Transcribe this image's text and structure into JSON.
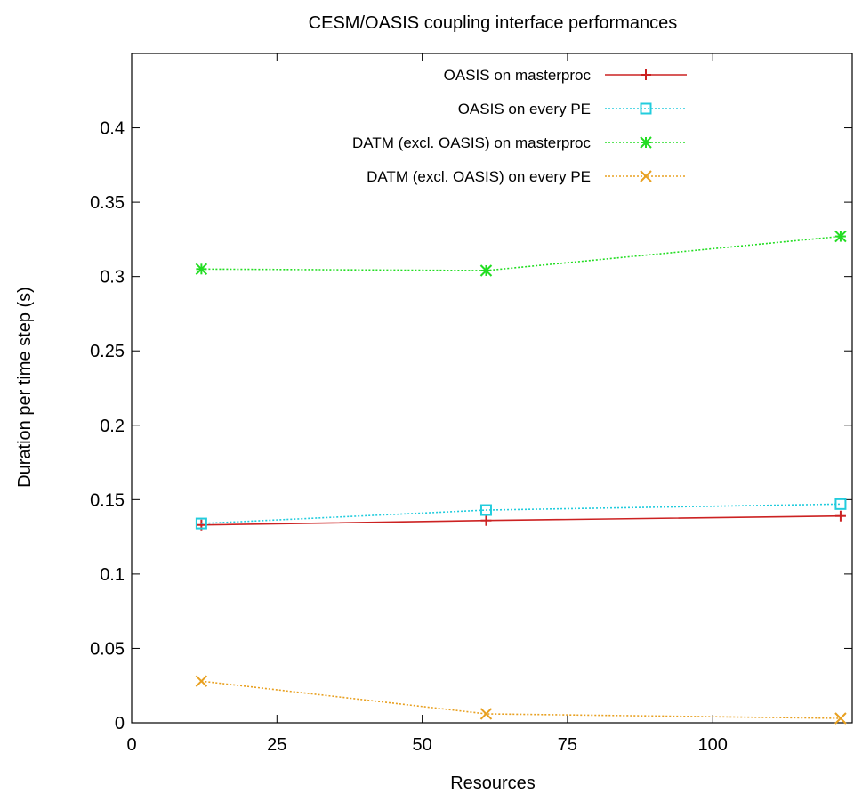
{
  "chart_data": {
    "type": "line",
    "title": "CESM/OASIS coupling interface performances",
    "xlabel": "Resources",
    "ylabel": "Duration per time step (s)",
    "xlim": [
      0,
      124
    ],
    "ylim": [
      0,
      0.45
    ],
    "xticks": [
      0,
      25,
      50,
      75,
      100
    ],
    "xtick_labels": [
      "0",
      "25",
      "50",
      "75",
      "100"
    ],
    "yticks": [
      0,
      0.05,
      0.1,
      0.15,
      0.2,
      0.25,
      0.3,
      0.35,
      0.4
    ],
    "ytick_labels": [
      "0",
      "0.05",
      "0.1",
      "0.15",
      "0.2",
      "0.25",
      "0.3",
      "0.35",
      "0.4"
    ],
    "grid": false,
    "legend_position": "top-right",
    "x": [
      12,
      61,
      122
    ],
    "series": [
      {
        "name": "OASIS on masterproc",
        "values": [
          0.133,
          0.136,
          0.139
        ],
        "color": "#cc2222",
        "marker": "plus",
        "dash": "solid"
      },
      {
        "name": "OASIS on every PE",
        "values": [
          0.134,
          0.143,
          0.147
        ],
        "color": "#22ccdd",
        "marker": "square",
        "dash": "dotted"
      },
      {
        "name": "DATM (excl. OASIS) on masterproc",
        "values": [
          0.305,
          0.304,
          0.327
        ],
        "color": "#22dd22",
        "marker": "star",
        "dash": "dotted"
      },
      {
        "name": "DATM (excl. OASIS) on every PE",
        "values": [
          0.028,
          0.006,
          0.003
        ],
        "color": "#e8a020",
        "marker": "cross",
        "dash": "dotted"
      }
    ]
  }
}
